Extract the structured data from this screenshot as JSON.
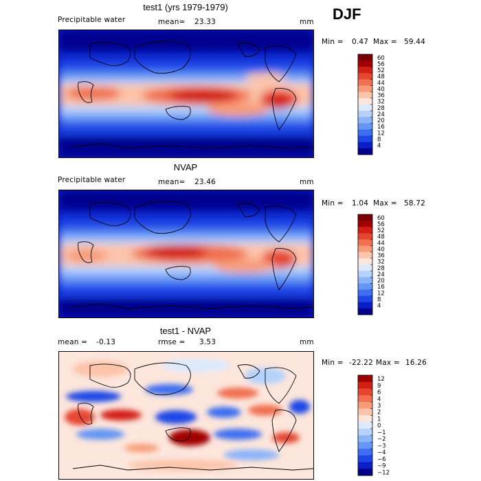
{
  "season": "DJF",
  "colors": {
    "main_palette": [
      "#00008b",
      "#0a1ec8",
      "#1e46e6",
      "#3c6ef0",
      "#6496f5",
      "#8cb4fa",
      "#b4d2fc",
      "#dceafd",
      "#fde6dc",
      "#fcc4aa",
      "#f89c78",
      "#f07050",
      "#e64630",
      "#d21e14",
      "#a00000",
      "#7a0000"
    ],
    "diff_palette": [
      "#00008b",
      "#0a1ec8",
      "#1e46e6",
      "#3c6ef0",
      "#6496f5",
      "#8cb4fa",
      "#b4d2fc",
      "#dceafd",
      "#fde6dc",
      "#fcc4aa",
      "#f89c78",
      "#f07050",
      "#e64630",
      "#d21e14",
      "#a00000"
    ]
  },
  "chart_data": [
    {
      "type": "heatmap",
      "title": "test1 (yrs 1979-1979)",
      "variable": "Precipitable water",
      "mean_label": "mean=",
      "mean_value": "23.33",
      "units": "mm",
      "min_label": "Min =",
      "min_value": "0.47",
      "max_label": "Max =",
      "max_value": "59.44",
      "colorbar_ticks": [
        "60",
        "56",
        "52",
        "48",
        "44",
        "40",
        "36",
        "32",
        "28",
        "24",
        "20",
        "16",
        "12",
        "8",
        "4"
      ],
      "colorbar_levels": [
        4,
        8,
        12,
        16,
        20,
        24,
        28,
        32,
        36,
        40,
        44,
        48,
        52,
        56,
        60
      ]
    },
    {
      "type": "heatmap",
      "title": "NVAP",
      "variable": "Precipitable water",
      "mean_label": "mean=",
      "mean_value": "23.46",
      "units": "mm",
      "min_label": "Min =",
      "min_value": "1.04",
      "max_label": "Max =",
      "max_value": "58.72",
      "colorbar_ticks": [
        "60",
        "56",
        "52",
        "48",
        "44",
        "40",
        "36",
        "32",
        "28",
        "24",
        "20",
        "16",
        "12",
        "8",
        "4"
      ],
      "colorbar_levels": [
        4,
        8,
        12,
        16,
        20,
        24,
        28,
        32,
        36,
        40,
        44,
        48,
        52,
        56,
        60
      ]
    },
    {
      "type": "heatmap",
      "title": "test1 - NVAP",
      "mean_label": "mean =",
      "mean_value": "-0.13",
      "rmse_label": "rmse =",
      "rmse_value": "3.53",
      "units": "mm",
      "min_label": "Min =",
      "min_value": "-22.22",
      "max_label": "Max =",
      "max_value": "16.26",
      "colorbar_ticks": [
        "12",
        "9",
        "6",
        "4",
        "3",
        "2",
        "1",
        "0",
        "−1",
        "−2",
        "−3",
        "−4",
        "−6",
        "−9",
        "−12"
      ],
      "colorbar_levels": [
        -12,
        -9,
        -6,
        -4,
        -3,
        -2,
        -1,
        0,
        1,
        2,
        3,
        4,
        6,
        9,
        12
      ]
    }
  ]
}
